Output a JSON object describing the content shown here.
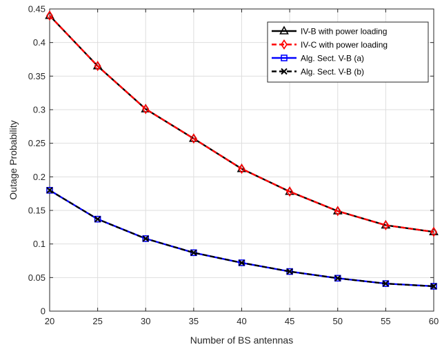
{
  "chart_data": {
    "type": "line",
    "title": "",
    "xlabel": "Number of BS antennas",
    "ylabel": "Outage Probability",
    "xlim": [
      20,
      60
    ],
    "ylim": [
      0,
      0.45
    ],
    "xticks": [
      20,
      25,
      30,
      35,
      40,
      45,
      50,
      55,
      60
    ],
    "yticks": [
      0,
      0.05,
      0.1,
      0.15,
      0.2,
      0.25,
      0.3,
      0.35,
      0.4,
      0.45
    ],
    "ytick_labels": [
      "0",
      "0.05",
      "0.1",
      "0.15",
      "0.2",
      "0.25",
      "0.3",
      "0.35",
      "0.4",
      "0.45"
    ],
    "grid": true,
    "legend_position": "top-right",
    "x": [
      20,
      25,
      30,
      35,
      40,
      45,
      50,
      55,
      60
    ],
    "series": [
      {
        "name": "IV-B with power loading",
        "color": "#000000",
        "dash": "solid",
        "marker": "triangle",
        "values": [
          0.44,
          0.365,
          0.301,
          0.257,
          0.212,
          0.178,
          0.149,
          0.128,
          0.118
        ]
      },
      {
        "name": "IV-C with power loading",
        "color": "#ff0000",
        "dash": "dashed",
        "marker": "diamond",
        "values": [
          0.44,
          0.365,
          0.301,
          0.257,
          0.212,
          0.178,
          0.149,
          0.128,
          0.118
        ]
      },
      {
        "name": "Alg. Sect. V-B (a)",
        "color": "#0000ff",
        "dash": "solid",
        "marker": "square",
        "values": [
          0.18,
          0.137,
          0.108,
          0.087,
          0.072,
          0.059,
          0.049,
          0.041,
          0.037
        ]
      },
      {
        "name": "Alg. Sect. V-B (b)",
        "color": "#000000",
        "dash": "dashed",
        "marker": "x",
        "values": [
          0.18,
          0.137,
          0.108,
          0.087,
          0.072,
          0.059,
          0.049,
          0.041,
          0.037
        ]
      }
    ]
  }
}
